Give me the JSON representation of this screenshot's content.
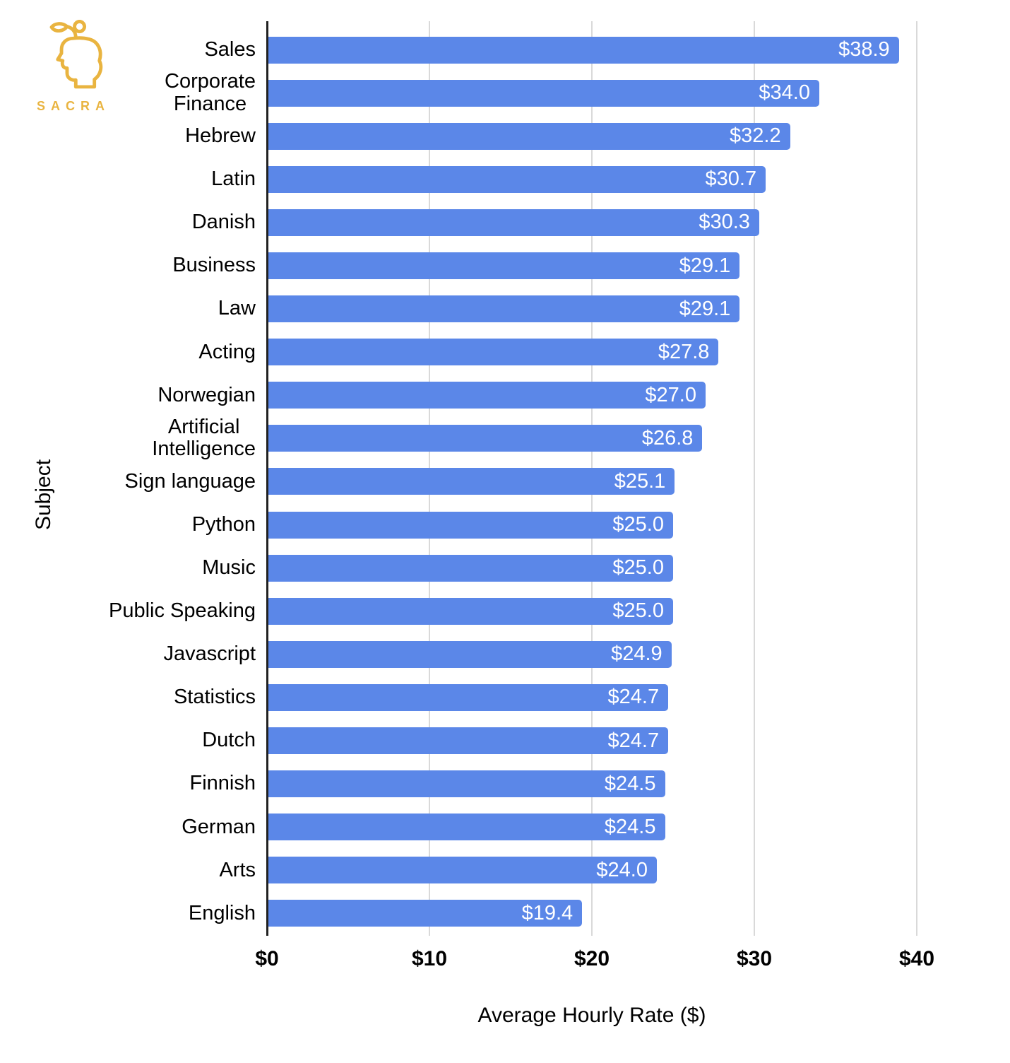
{
  "logo": {
    "text": "SACRA"
  },
  "chart_data": {
    "type": "bar",
    "orientation": "horizontal",
    "title": "",
    "xlabel": "Average Hourly Rate ($)",
    "ylabel": "Subject",
    "categories": [
      "Sales",
      "Corporate\nFinance",
      "Hebrew",
      "Latin",
      "Danish",
      "Business",
      "Law",
      "Acting",
      "Norwegian",
      "Artificial\nIntelligence",
      "Sign language",
      "Python",
      "Music",
      "Public Speaking",
      "Javascript",
      "Statistics",
      "Dutch",
      "Finnish",
      "German",
      "Arts",
      "English"
    ],
    "values": [
      38.9,
      34.0,
      32.2,
      30.7,
      30.3,
      29.1,
      29.1,
      27.8,
      27.0,
      26.8,
      25.1,
      25.0,
      25.0,
      25.0,
      24.9,
      24.7,
      24.7,
      24.5,
      24.5,
      24.0,
      19.4
    ],
    "value_labels": [
      "$38.9",
      "$34.0",
      "$32.2",
      "$30.7",
      "$30.3",
      "$29.1",
      "$29.1",
      "$27.8",
      "$27.0",
      "$26.8",
      "$25.1",
      "$25.0",
      "$25.0",
      "$25.0",
      "$24.9",
      "$24.7",
      "$24.7",
      "$24.5",
      "$24.5",
      "$24.0",
      "$19.4"
    ],
    "x_ticks": [
      "$0",
      "$10",
      "$20",
      "$30",
      "$40"
    ],
    "x_tick_values": [
      0,
      10,
      20,
      30,
      40
    ],
    "xlim": [
      0,
      44
    ],
    "bar_color": "#5b87e8",
    "grid": "vertical",
    "legend": "none"
  }
}
